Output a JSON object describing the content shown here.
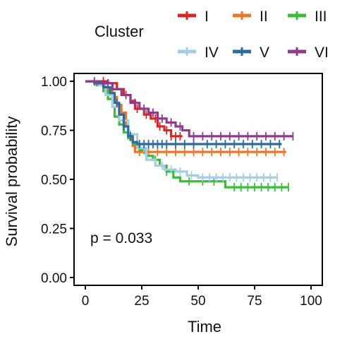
{
  "chart_data": {
    "type": "line",
    "subtype": "kaplan-meier",
    "xlabel": "Time",
    "ylabel": "Survival probability",
    "xlim": [
      -5,
      105
    ],
    "ylim": [
      -0.04,
      1.04
    ],
    "xticks": [
      0,
      25,
      50,
      75,
      100
    ],
    "yticks": [
      0.0,
      0.25,
      0.5,
      0.75,
      1.0
    ],
    "ytick_labels": [
      "0.00",
      "0.25",
      "0.50",
      "0.75",
      "1.00"
    ],
    "xtick_labels": [
      "0",
      "25",
      "50",
      "75",
      "100"
    ],
    "grid": false,
    "legend": {
      "title": "Cluster",
      "position": "top"
    },
    "annotation": "p = 0.033",
    "series": [
      {
        "name": "I",
        "color": "#d62728",
        "steps": [
          [
            0,
            1.0
          ],
          [
            10,
            0.99
          ],
          [
            14,
            0.96
          ],
          [
            17,
            0.93
          ],
          [
            20,
            0.9
          ],
          [
            22,
            0.86
          ],
          [
            26,
            0.83
          ],
          [
            29,
            0.81
          ],
          [
            32,
            0.77
          ],
          [
            35,
            0.75
          ],
          [
            38,
            0.72
          ],
          [
            43,
            0.72
          ]
        ],
        "censor_x": [
          4,
          8,
          23,
          27,
          31,
          33,
          36,
          38,
          40,
          42
        ]
      },
      {
        "name": "II",
        "color": "#e8772e",
        "steps": [
          [
            0,
            1.0
          ],
          [
            5,
            0.99
          ],
          [
            9,
            0.96
          ],
          [
            12,
            0.92
          ],
          [
            14,
            0.88
          ],
          [
            16,
            0.84
          ],
          [
            18,
            0.77
          ],
          [
            19,
            0.73
          ],
          [
            20,
            0.7
          ],
          [
            21,
            0.67
          ],
          [
            22,
            0.64
          ],
          [
            89,
            0.64
          ]
        ],
        "censor_x": [
          24,
          28,
          32,
          36,
          40,
          44,
          48,
          52,
          56,
          60,
          64,
          68,
          72,
          76,
          80,
          84,
          88
        ]
      },
      {
        "name": "III",
        "color": "#3dbb3d",
        "steps": [
          [
            0,
            1.0
          ],
          [
            5,
            0.98
          ],
          [
            8,
            0.95
          ],
          [
            10,
            0.91
          ],
          [
            12,
            0.87
          ],
          [
            13,
            0.82
          ],
          [
            15,
            0.78
          ],
          [
            17,
            0.74
          ],
          [
            19,
            0.71
          ],
          [
            21,
            0.68
          ],
          [
            24,
            0.65
          ],
          [
            27,
            0.62
          ],
          [
            30,
            0.6
          ],
          [
            33,
            0.57
          ],
          [
            36,
            0.54
          ],
          [
            39,
            0.51
          ],
          [
            42,
            0.49
          ],
          [
            49,
            0.49
          ],
          [
            62,
            0.46
          ],
          [
            90,
            0.46
          ]
        ],
        "censor_x": [
          26,
          31,
          36,
          46,
          52,
          57,
          66,
          69,
          72,
          75,
          78,
          81,
          84,
          87,
          90
        ]
      },
      {
        "name": "IV",
        "color": "#a6cee3",
        "steps": [
          [
            0,
            1.0
          ],
          [
            6,
            0.98
          ],
          [
            9,
            0.93
          ],
          [
            12,
            0.87
          ],
          [
            15,
            0.8
          ],
          [
            19,
            0.73
          ],
          [
            23,
            0.66
          ],
          [
            27,
            0.6
          ],
          [
            31,
            0.57
          ],
          [
            35,
            0.55
          ],
          [
            40,
            0.54
          ],
          [
            45,
            0.52
          ],
          [
            50,
            0.51
          ],
          [
            85,
            0.51
          ]
        ],
        "censor_x": [
          20,
          26,
          34,
          38,
          42,
          47,
          52,
          55,
          58,
          61,
          64,
          67,
          70,
          73,
          76,
          79,
          82,
          85
        ]
      },
      {
        "name": "V",
        "color": "#2c6b9e",
        "steps": [
          [
            0,
            1.0
          ],
          [
            4,
            0.99
          ],
          [
            8,
            0.97
          ],
          [
            11,
            0.94
          ],
          [
            13,
            0.89
          ],
          [
            15,
            0.83
          ],
          [
            17,
            0.77
          ],
          [
            19,
            0.72
          ],
          [
            21,
            0.69
          ],
          [
            23,
            0.68
          ],
          [
            87,
            0.68
          ]
        ],
        "censor_x": [
          14,
          17,
          20,
          24,
          26,
          28,
          30,
          32,
          34,
          36,
          40,
          44,
          48,
          54,
          58,
          62,
          66,
          70,
          74,
          78,
          82,
          86
        ]
      },
      {
        "name": "VI",
        "color": "#8e3b8e",
        "steps": [
          [
            0,
            1.0
          ],
          [
            7,
            0.99
          ],
          [
            12,
            0.96
          ],
          [
            16,
            0.93
          ],
          [
            20,
            0.89
          ],
          [
            24,
            0.86
          ],
          [
            28,
            0.84
          ],
          [
            32,
            0.81
          ],
          [
            36,
            0.79
          ],
          [
            40,
            0.77
          ],
          [
            43,
            0.75
          ],
          [
            46,
            0.72
          ],
          [
            92,
            0.72
          ]
        ],
        "censor_x": [
          10,
          18,
          22,
          26,
          30,
          34,
          38,
          42,
          48,
          52,
          56,
          60,
          64,
          68,
          72,
          76,
          80,
          84,
          88,
          92
        ]
      }
    ]
  }
}
